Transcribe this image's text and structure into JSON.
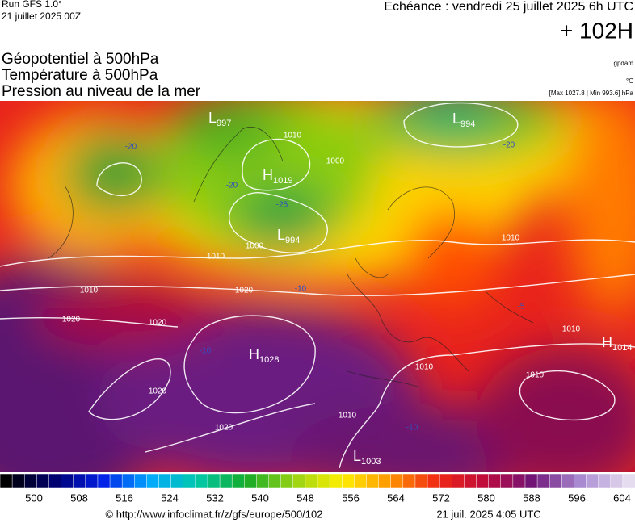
{
  "header": {
    "run": "Run GFS 1.0°",
    "run_date": "21 juillet 2025 00Z",
    "echeance": "Echéance : vendredi 25 juillet 2025 6h UTC",
    "lead": "+ 102H",
    "titles": [
      "Géopotentiel à 500hPa",
      "Température à 500hPa",
      "Pression au niveau de la mer"
    ],
    "units": [
      "gpdam",
      "°C",
      "[Max 1027.8 | Min 993.6] hPa"
    ]
  },
  "centers": [
    {
      "type": "L",
      "value": "997"
    },
    {
      "type": "H",
      "value": "1019"
    },
    {
      "type": "L",
      "value": "994"
    },
    {
      "type": "L",
      "value": "994"
    },
    {
      "type": "H",
      "value": "1028"
    },
    {
      "type": "H",
      "value": "1014"
    },
    {
      "type": "L",
      "value": "1003"
    }
  ],
  "isobar_labels": [
    "1010",
    "1000",
    "1010",
    "1010",
    "1020",
    "1020",
    "1020",
    "1020",
    "1020",
    "1010",
    "1010",
    "1010",
    "1010",
    "1010",
    "1000"
  ],
  "temperature_labels": [
    "-20",
    "-20",
    "-25",
    "-20",
    "-10",
    "-10",
    "-5",
    "-10"
  ],
  "colorbar": {
    "labels": [
      500,
      508,
      516,
      524,
      532,
      540,
      548,
      556,
      564,
      572,
      580,
      588,
      596,
      604
    ]
  },
  "footer": {
    "url": "© http://www.infoclimat.fr/z/gfs/europe/500/102",
    "timestamp": "21 juil. 2025  4:05 UTC"
  }
}
